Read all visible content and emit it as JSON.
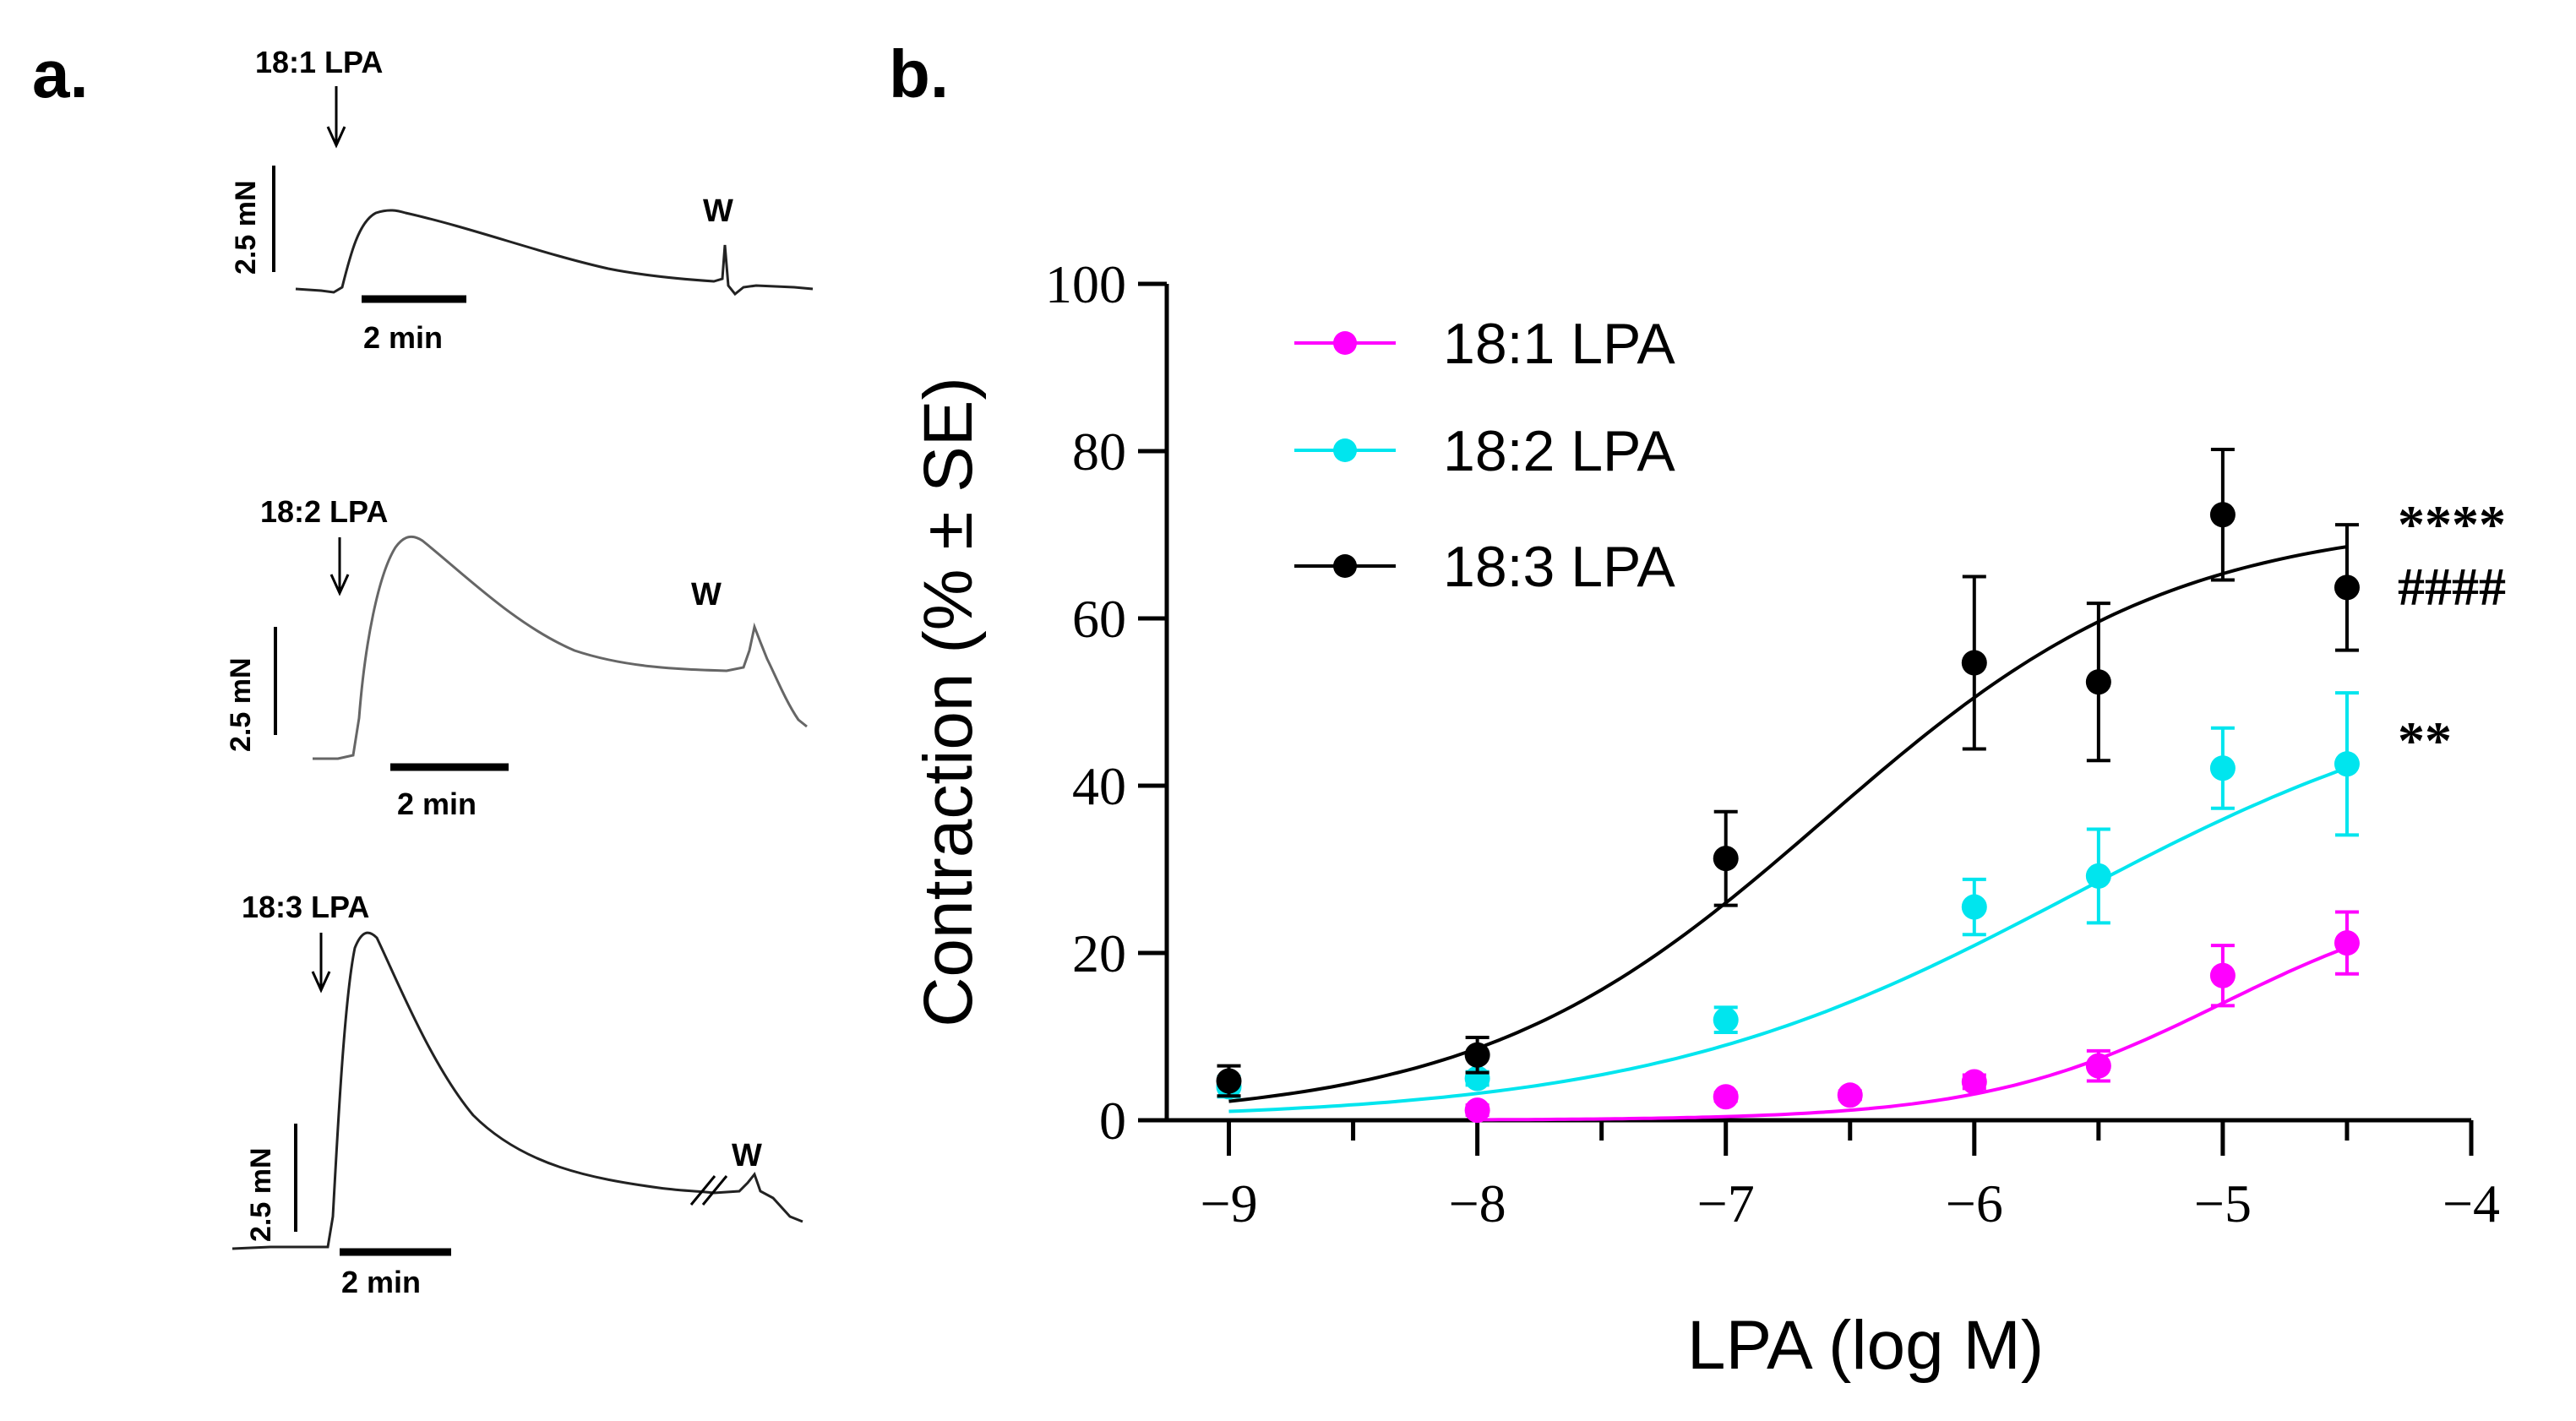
{
  "panels": {
    "a": {
      "letter": "a.",
      "traces": [
        {
          "agonist": "18:1 LPA",
          "scale_force": "2.5 mN",
          "scale_time": "2 min",
          "washout": "W"
        },
        {
          "agonist": "18:2 LPA",
          "scale_force": "2.5 mN",
          "scale_time": "2 min",
          "washout": "W"
        },
        {
          "agonist": "18:3 LPA",
          "scale_force": "2.5 mN",
          "scale_time": "2 min",
          "washout": "W"
        }
      ]
    },
    "b": {
      "letter": "b."
    }
  },
  "chart_data": {
    "type": "scatter",
    "title": "",
    "xlabel": "LPA (log M)",
    "ylabel": "Contraction (% ± SE)",
    "xlim": [
      -9.25,
      -4
    ],
    "ylim": [
      0,
      100
    ],
    "xticks": [
      -9,
      -8,
      -7,
      -6,
      -5,
      -4
    ],
    "xtick_labels": [
      "−9",
      "−8",
      "−7",
      "−6",
      "−5",
      "−4"
    ],
    "yticks": [
      0,
      20,
      40,
      60,
      80,
      100
    ],
    "ytick_labels": [
      "0",
      "20",
      "40",
      "60",
      "80",
      "100"
    ],
    "minor_xticks": [
      -8.5,
      -7.5,
      -6.5,
      -5.5,
      -4.5
    ],
    "legend_position": "top-left",
    "series": [
      {
        "name": "18:1 LPA",
        "color": "#ff00ff",
        "x": [
          -8,
          -7,
          -6.5,
          -6,
          -5.5,
          -5,
          -4.5
        ],
        "y": [
          1.2,
          2.8,
          3.0,
          4.6,
          6.5,
          17.3,
          21.2
        ],
        "err": [
          0.6,
          0.5,
          0.5,
          0.8,
          1.8,
          3.6,
          3.7
        ],
        "fit": {
          "bottom": 0,
          "top": 28,
          "log_ec50": -5.0,
          "hill": 0.9
        },
        "annotation": ""
      },
      {
        "name": "18:2 LPA",
        "color": "#00e5ee",
        "x": [
          -9,
          -8,
          -7,
          -6,
          -5.5,
          -5,
          -4.5
        ],
        "y": [
          4.0,
          5.0,
          12.0,
          25.5,
          29.2,
          42.1,
          42.6
        ],
        "err": [
          1.2,
          0.8,
          1.5,
          3.3,
          5.6,
          4.8,
          8.5
        ],
        "fit": {
          "bottom": 0,
          "top": 54,
          "log_ec50": -5.6,
          "hill": 0.5
        },
        "annotation": "**"
      },
      {
        "name": "18:3 LPA",
        "color": "#000000",
        "x": [
          -9,
          -8,
          -7,
          -6,
          -5.5,
          -5,
          -4.5
        ],
        "y": [
          4.7,
          7.8,
          31.3,
          54.7,
          52.4,
          72.4,
          63.7
        ],
        "err": [
          1.8,
          2.1,
          5.6,
          10.3,
          9.4,
          7.8,
          7.5
        ],
        "fit": {
          "bottom": 0,
          "top": 72,
          "log_ec50": -6.6,
          "hill": 0.62
        },
        "annotation": "****\n####"
      }
    ]
  }
}
